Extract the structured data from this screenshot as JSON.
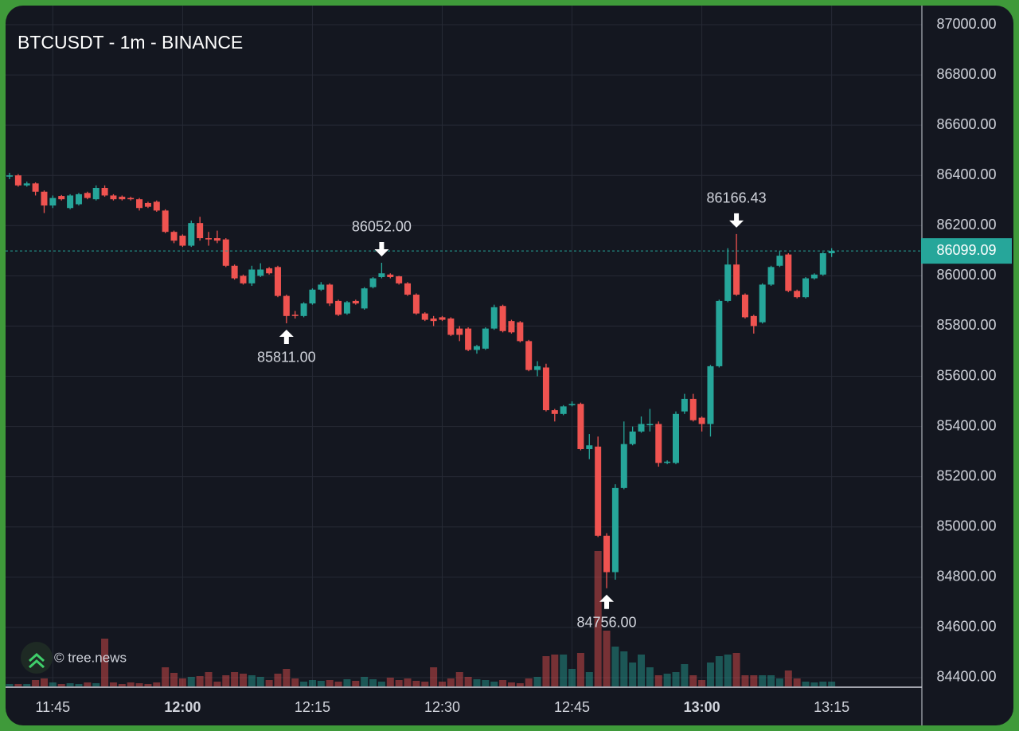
{
  "chart_data": {
    "type": "candlestick",
    "title": "BTCUSDT - 1m - BINANCE",
    "watermark": "© tree.news",
    "up_color": "#26a69a",
    "down_color": "#ef5350",
    "grid": true,
    "x": [
      "11:40",
      "11:41",
      "11:42",
      "11:43",
      "11:44",
      "11:45",
      "11:46",
      "11:47",
      "11:48",
      "11:49",
      "11:50",
      "11:51",
      "11:52",
      "11:53",
      "11:54",
      "11:55",
      "11:56",
      "11:57",
      "11:58",
      "11:59",
      "12:00",
      "12:01",
      "12:02",
      "12:03",
      "12:04",
      "12:05",
      "12:06",
      "12:07",
      "12:08",
      "12:09",
      "12:10",
      "12:11",
      "12:12",
      "12:13",
      "12:14",
      "12:15",
      "12:16",
      "12:17",
      "12:18",
      "12:19",
      "12:20",
      "12:21",
      "12:22",
      "12:23",
      "12:24",
      "12:25",
      "12:26",
      "12:27",
      "12:28",
      "12:29",
      "12:30",
      "12:31",
      "12:32",
      "12:33",
      "12:34",
      "12:35",
      "12:36",
      "12:37",
      "12:38",
      "12:39",
      "12:40",
      "12:41",
      "12:42",
      "12:43",
      "12:44",
      "12:45",
      "12:46",
      "12:47",
      "12:48",
      "12:49",
      "12:50",
      "12:51",
      "12:52",
      "12:53",
      "12:54",
      "12:55",
      "12:56",
      "12:57",
      "12:58",
      "12:59",
      "13:00",
      "13:01",
      "13:02",
      "13:03",
      "13:04",
      "13:05",
      "13:06",
      "13:07",
      "13:08",
      "13:09",
      "13:10",
      "13:11",
      "13:12",
      "13:13",
      "13:14",
      "13:15"
    ],
    "open": [
      86395,
      86400,
      86360,
      86368,
      86335,
      86280,
      86318,
      86270,
      86285,
      86330,
      86305,
      86350,
      86320,
      86315,
      86310,
      86305,
      86290,
      86295,
      86260,
      86175,
      86160,
      86120,
      86210,
      86150,
      86150,
      86145,
      86040,
      86000,
      85970,
      86000,
      86030,
      86035,
      85920,
      85845,
      85840,
      85890,
      85945,
      85965,
      85900,
      85850,
      85900,
      85870,
      85955,
      85995,
      86005,
      85998,
      85970,
      85925,
      85850,
      85830,
      85835,
      85830,
      85790,
      85790,
      85705,
      85710,
      85790,
      85880,
      85820,
      85815,
      85740,
      85625,
      85635,
      85465,
      85450,
      85485,
      85490,
      85310,
      85320,
      84965,
      84820,
      85155,
      85330,
      85380,
      85405,
      85410,
      85255,
      85255,
      85460,
      85510,
      85435,
      85410,
      85640,
      85900,
      86045,
      85925,
      85840,
      85815,
      85965,
      86040,
      86085,
      85940,
      85915,
      85990,
      86005,
      86090
    ],
    "high": [
      86410,
      86405,
      86375,
      86372,
      86340,
      86320,
      86322,
      86325,
      86330,
      86335,
      86360,
      86360,
      86325,
      86320,
      86315,
      86310,
      86295,
      86300,
      86265,
      86180,
      86165,
      86220,
      86235,
      86175,
      86180,
      86150,
      86045,
      86005,
      86040,
      86050,
      86035,
      86040,
      85925,
      85860,
      85895,
      85950,
      85975,
      85970,
      85905,
      85900,
      85905,
      85955,
      85995,
      86052,
      86010,
      86000,
      85975,
      85930,
      85855,
      85840,
      85840,
      85835,
      85800,
      85795,
      85725,
      85795,
      85885,
      85885,
      85825,
      85820,
      85745,
      85660,
      85650,
      85470,
      85485,
      85500,
      85495,
      85370,
      85360,
      84975,
      85170,
      85420,
      85400,
      85440,
      85470,
      85420,
      85265,
      85460,
      85530,
      85530,
      85440,
      85645,
      85905,
      86110,
      86166.43,
      85930,
      85845,
      85970,
      86040,
      86100,
      86090,
      85945,
      85995,
      86010,
      86095,
      86110
    ],
    "low": [
      86385,
      86355,
      86355,
      86320,
      86250,
      86270,
      86300,
      86265,
      86280,
      86305,
      86300,
      86315,
      86300,
      86300,
      86300,
      86260,
      86270,
      86255,
      86170,
      86130,
      86115,
      86115,
      86140,
      86120,
      86130,
      86035,
      85985,
      85965,
      85960,
      85995,
      86005,
      85915,
      85811,
      85830,
      85835,
      85885,
      85940,
      85880,
      85840,
      85845,
      85885,
      85865,
      85950,
      85990,
      85990,
      85965,
      85920,
      85845,
      85820,
      85800,
      85820,
      85760,
      85740,
      85700,
      85690,
      85705,
      85785,
      85775,
      85770,
      85735,
      85620,
      85600,
      85460,
      85420,
      85445,
      85480,
      85305,
      85270,
      84960,
      84756,
      84790,
      85150,
      85325,
      85375,
      85380,
      85240,
      85250,
      85250,
      85450,
      85420,
      85380,
      85360,
      85635,
      85895,
      85920,
      85830,
      85770,
      85810,
      85960,
      86035,
      85935,
      85910,
      85910,
      85985,
      86000,
      86075
    ],
    "close": [
      86400,
      86360,
      86368,
      86335,
      86280,
      86310,
      86305,
      86320,
      86325,
      86310,
      86350,
      86320,
      86305,
      86305,
      86305,
      86270,
      86275,
      86260,
      86175,
      86140,
      86120,
      86210,
      86150,
      86145,
      86140,
      86040,
      85990,
      85970,
      86025,
      86025,
      86010,
      85920,
      85840,
      85840,
      85890,
      85945,
      85965,
      85890,
      85845,
      85895,
      85890,
      85950,
      85990,
      86010,
      85995,
      85970,
      85925,
      85850,
      85825,
      85820,
      85825,
      85765,
      85765,
      85705,
      85720,
      85790,
      85875,
      85780,
      85775,
      85740,
      85625,
      85640,
      85465,
      85450,
      85480,
      85490,
      85310,
      85325,
      84965,
      84820,
      85155,
      85330,
      85380,
      85410,
      85410,
      85255,
      85260,
      85450,
      85510,
      85425,
      85410,
      85640,
      85900,
      86045,
      85925,
      85835,
      85800,
      85965,
      86035,
      86080,
      85940,
      85915,
      85990,
      86005,
      86090,
      86099.09
    ],
    "volume": [
      3,
      3,
      3,
      8,
      10,
      5,
      3,
      4,
      3,
      5,
      4,
      60,
      5,
      3,
      5,
      4,
      3,
      5,
      24,
      17,
      10,
      12,
      13,
      18,
      6,
      14,
      18,
      16,
      14,
      12,
      8,
      16,
      22,
      10,
      6,
      8,
      7,
      8,
      6,
      9,
      7,
      12,
      9,
      6,
      11,
      8,
      10,
      7,
      6,
      24,
      6,
      10,
      18,
      12,
      9,
      8,
      6,
      8,
      5,
      4,
      10,
      12,
      38,
      40,
      40,
      22,
      42,
      18,
      170,
      70,
      50,
      44,
      30,
      40,
      24,
      14,
      16,
      18,
      28,
      14,
      8,
      30,
      38,
      40,
      42,
      14,
      14,
      14,
      14,
      10,
      20,
      10,
      6,
      5,
      6,
      6
    ],
    "ylim": [
      84365,
      87073
    ],
    "yticks": [
      {
        "value": 84400,
        "label": "84400.00"
      },
      {
        "value": 84600,
        "label": "84600.00"
      },
      {
        "value": 84800,
        "label": "84800.00"
      },
      {
        "value": 85000,
        "label": "85000.00"
      },
      {
        "value": 85200,
        "label": "85200.00"
      },
      {
        "value": 85400,
        "label": "85400.00"
      },
      {
        "value": 85600,
        "label": "85600.00"
      },
      {
        "value": 85800,
        "label": "85800.00"
      },
      {
        "value": 86000,
        "label": "86000.00"
      },
      {
        "value": 86200,
        "label": "86200.00"
      },
      {
        "value": 86400,
        "label": "86400.00"
      },
      {
        "value": 86600,
        "label": "86600.00"
      },
      {
        "value": 86800,
        "label": "86800.00"
      },
      {
        "value": 87000,
        "label": "87000.00"
      }
    ],
    "xticks": [
      "11:45",
      "12:00",
      "12:15",
      "12:30",
      "12:45",
      "13:00",
      "13:15"
    ],
    "last_price": {
      "value": 86099.09,
      "label": "86099.09"
    },
    "annotations": [
      {
        "x": "12:12",
        "value": 85811,
        "label": "85811.00",
        "arrow": "up"
      },
      {
        "x": "12:23",
        "value": 86052,
        "label": "86052.00",
        "arrow": "down"
      },
      {
        "x": "12:49",
        "value": 84756,
        "label": "84756.00",
        "arrow": "up"
      },
      {
        "x": "13:04",
        "value": 86166.43,
        "label": "86166.43",
        "arrow": "down"
      }
    ]
  }
}
